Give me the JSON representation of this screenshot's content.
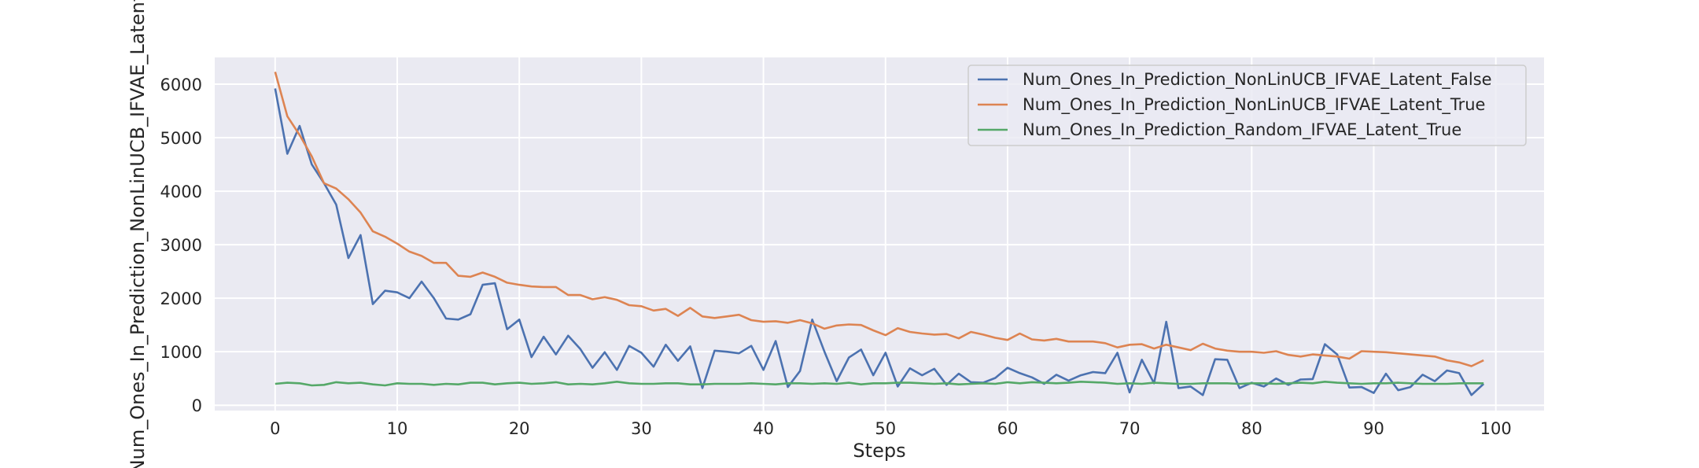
{
  "chart_data": {
    "type": "line",
    "title": "",
    "xlabel": "Steps",
    "ylabel": "Num_Ones_In_Prediction_NonLinUCB_IFVAE_Latent",
    "xlim": [
      -4.95,
      103.95
    ],
    "ylim": [
      -100,
      6500
    ],
    "x_ticks": [
      0,
      10,
      20,
      30,
      40,
      50,
      60,
      70,
      80,
      90,
      100
    ],
    "y_ticks": [
      0,
      1000,
      2000,
      3000,
      4000,
      5000,
      6000
    ],
    "grid": true,
    "background": "#EAEAF2",
    "legend_position": "upper right",
    "x": [
      0,
      1,
      2,
      3,
      4,
      5,
      6,
      7,
      8,
      9,
      10,
      11,
      12,
      13,
      14,
      15,
      16,
      17,
      18,
      19,
      20,
      21,
      22,
      23,
      24,
      25,
      26,
      27,
      28,
      29,
      30,
      31,
      32,
      33,
      34,
      35,
      36,
      37,
      38,
      39,
      40,
      41,
      42,
      43,
      44,
      45,
      46,
      47,
      48,
      49,
      50,
      51,
      52,
      53,
      54,
      55,
      56,
      57,
      58,
      59,
      60,
      61,
      62,
      63,
      64,
      65,
      66,
      67,
      68,
      69,
      70,
      71,
      72,
      73,
      74,
      75,
      76,
      77,
      78,
      79,
      80,
      81,
      82,
      83,
      84,
      85,
      86,
      87,
      88,
      89,
      90,
      91,
      92,
      93,
      94,
      95,
      96,
      97,
      98,
      99
    ],
    "series": [
      {
        "name": "Num_Ones_In_Prediction_NonLinUCB_IFVAE_Latent_False",
        "color": "#4C72B0",
        "values": [
          5920,
          4700,
          5220,
          4500,
          4150,
          3750,
          2750,
          3180,
          1890,
          2140,
          2110,
          2000,
          2310,
          2000,
          1620,
          1600,
          1700,
          2250,
          2280,
          1420,
          1600,
          900,
          1280,
          950,
          1300,
          1050,
          700,
          990,
          660,
          1110,
          980,
          720,
          1130,
          830,
          1100,
          320,
          1020,
          1000,
          970,
          1110,
          660,
          1200,
          340,
          640,
          1600,
          1000,
          450,
          890,
          1040,
          560,
          980,
          350,
          690,
          560,
          680,
          380,
          590,
          430,
          420,
          510,
          700,
          600,
          520,
          400,
          570,
          460,
          560,
          620,
          600,
          980,
          240,
          850,
          410,
          1560,
          320,
          350,
          190,
          860,
          850,
          320,
          420,
          350,
          500,
          380,
          480,
          490,
          1140,
          950,
          330,
          340,
          230,
          590,
          280,
          340,
          570,
          450,
          650,
          600,
          190,
          400
        ]
      },
      {
        "name": "Num_Ones_In_Prediction_NonLinUCB_IFVAE_Latent_True",
        "color": "#DD8452",
        "values": [
          6230,
          5400,
          5050,
          4650,
          4150,
          4050,
          3850,
          3600,
          3250,
          3150,
          3020,
          2870,
          2790,
          2660,
          2660,
          2420,
          2400,
          2480,
          2400,
          2290,
          2250,
          2220,
          2210,
          2210,
          2060,
          2060,
          1980,
          2020,
          1970,
          1870,
          1850,
          1770,
          1800,
          1670,
          1820,
          1660,
          1630,
          1660,
          1690,
          1590,
          1560,
          1570,
          1540,
          1590,
          1530,
          1430,
          1490,
          1510,
          1500,
          1400,
          1310,
          1440,
          1370,
          1340,
          1320,
          1330,
          1250,
          1370,
          1320,
          1260,
          1220,
          1340,
          1230,
          1210,
          1240,
          1190,
          1190,
          1190,
          1160,
          1080,
          1130,
          1140,
          1060,
          1130,
          1080,
          1030,
          1150,
          1060,
          1020,
          1000,
          1000,
          980,
          1010,
          940,
          910,
          950,
          930,
          910,
          870,
          1010,
          1000,
          990,
          970,
          950,
          930,
          910,
          840,
          800,
          730,
          840
        ]
      },
      {
        "name": "Num_Ones_In_Prediction_Random_IFVAE_Latent_True",
        "color": "#55A868",
        "values": [
          400,
          420,
          410,
          370,
          380,
          430,
          410,
          420,
          390,
          370,
          410,
          400,
          400,
          380,
          400,
          390,
          420,
          420,
          390,
          410,
          420,
          400,
          410,
          430,
          390,
          400,
          390,
          410,
          440,
          410,
          400,
          400,
          410,
          410,
          390,
          390,
          400,
          400,
          400,
          410,
          400,
          390,
          410,
          410,
          400,
          410,
          400,
          420,
          390,
          410,
          410,
          420,
          420,
          410,
          400,
          410,
          390,
          400,
          410,
          400,
          430,
          410,
          430,
          420,
          410,
          420,
          440,
          430,
          420,
          400,
          410,
          400,
          420,
          410,
          400,
          400,
          410,
          410,
          410,
          400,
          410,
          410,
          400,
          410,
          420,
          410,
          440,
          420,
          410,
          400,
          410,
          410,
          420,
          410,
          400,
          400,
          400,
          410,
          410,
          410
        ]
      }
    ]
  }
}
